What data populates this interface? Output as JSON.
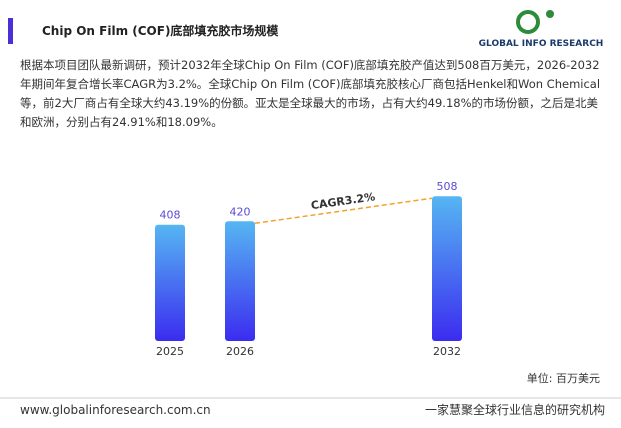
{
  "header": {
    "title": "Chip On Film (COF)底部填充胶市场规模",
    "logo": "GLOBAL INFO RESEARCH"
  },
  "paragraph": "根据本项目团队最新调研，预计2032年全球Chip On Film (COF)底部填充胶产值达到508百万美元，2026-2032年期间年复合增长率CAGR为3.2%。全球Chip On Film (COF)底部填充胶核心厂商包括Henkel和Won Chemical等，前2大厂商占有全球大约43.19%的份额。亚太是全球最大的市场，占有大约49.18%的市场份额，之后是北美和欧洲，分别占有24.91%和18.09%。",
  "chart_data": {
    "type": "bar",
    "categories": [
      "2025",
      "2026",
      "2032"
    ],
    "values": [
      408,
      420,
      508
    ],
    "annotation": "CAGR3.2%",
    "unit": "单位: 百万美元",
    "color_top": "#56b6f2",
    "color_bottom": "#3b2cf0",
    "label_color": "#5b4bd6",
    "trend_color": "#f5a030"
  },
  "footer": {
    "url": "www.globalinforesearch.com.cn",
    "slogan": "一家慧聚全球行业信息的研究机构"
  }
}
